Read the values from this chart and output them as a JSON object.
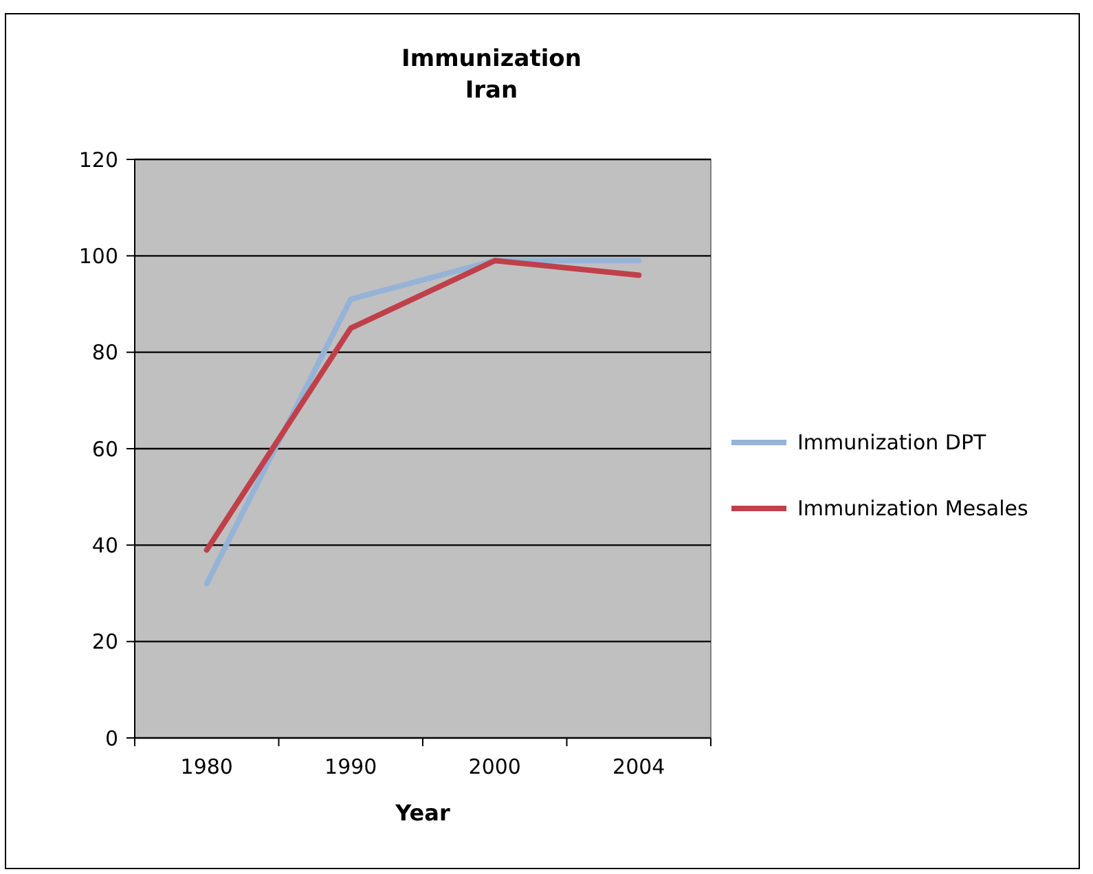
{
  "chart_data": {
    "type": "line",
    "title": "Immunization Iran",
    "xlabel": "Year",
    "categories": [
      "1980",
      "1990",
      "2000",
      "2004"
    ],
    "series": [
      {
        "name": "Immunization DPT",
        "color": "#95b3d7",
        "values": [
          32,
          91,
          99,
          99
        ]
      },
      {
        "name": "Immunization Mesales",
        "color": "#c0404a",
        "values": [
          39,
          85,
          99,
          96
        ]
      }
    ],
    "ylim": [
      0,
      120
    ],
    "yticks": [
      0,
      20,
      40,
      60,
      80,
      100,
      120
    ],
    "grid": "y",
    "legend": "right",
    "marker": "none",
    "line_style": "solid"
  }
}
